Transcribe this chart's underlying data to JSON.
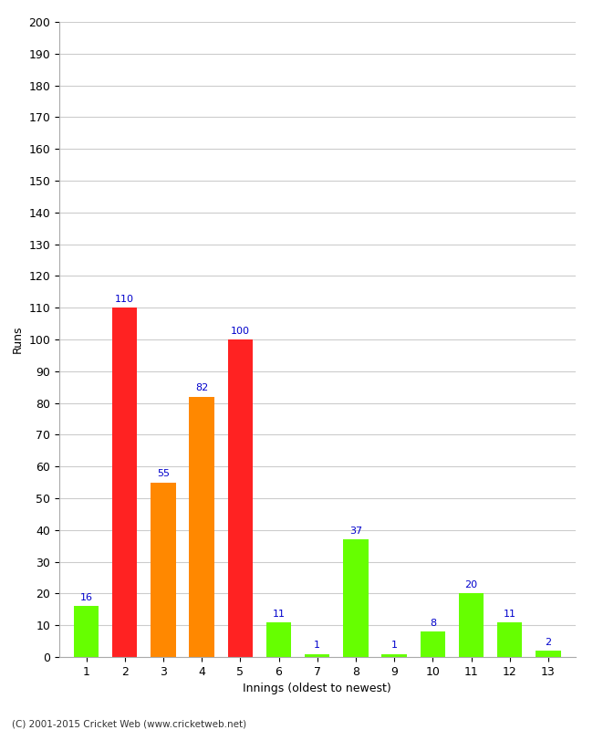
{
  "xlabel": "Innings (oldest to newest)",
  "ylabel": "Runs",
  "categories": [
    1,
    2,
    3,
    4,
    5,
    6,
    7,
    8,
    9,
    10,
    11,
    12,
    13
  ],
  "values": [
    16,
    110,
    55,
    82,
    100,
    11,
    1,
    37,
    1,
    8,
    20,
    11,
    2
  ],
  "bar_colors": [
    "#66ff00",
    "#ff2222",
    "#ff8800",
    "#ff8800",
    "#ff2222",
    "#66ff00",
    "#66ff00",
    "#66ff00",
    "#66ff00",
    "#66ff00",
    "#66ff00",
    "#66ff00",
    "#66ff00"
  ],
  "label_color": "#0000cc",
  "ylim": [
    0,
    200
  ],
  "yticks": [
    0,
    10,
    20,
    30,
    40,
    50,
    60,
    70,
    80,
    90,
    100,
    110,
    120,
    130,
    140,
    150,
    160,
    170,
    180,
    190,
    200
  ],
  "background_color": "#ffffff",
  "grid_color": "#cccccc",
  "footer": "(C) 2001-2015 Cricket Web (www.cricketweb.net)",
  "bar_width": 0.65
}
